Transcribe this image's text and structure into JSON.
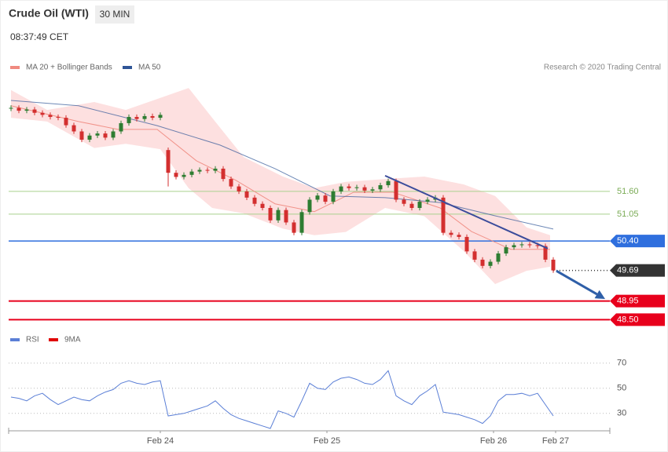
{
  "header": {
    "title": "Crude Oil (WTI)",
    "interval": "30 MIN",
    "time": "08:37:49 CET",
    "credit": "Research © 2020 Trading Central"
  },
  "chart_data": [
    {
      "type": "candlestick",
      "xlim": [
        -0.3,
        76.2
      ],
      "ylim": [
        48.26,
        54.33
      ],
      "up_color": "#2e7d32",
      "down_color": "#d32f2f",
      "open": [
        53.6,
        53.62,
        53.55,
        53.58,
        53.5,
        53.45,
        53.4,
        53.38,
        53.2,
        53.05,
        52.85,
        52.95,
        53.0,
        52.9,
        53.05,
        53.25,
        53.4,
        53.35,
        53.42,
        53.38,
        52.6,
        52.05,
        51.95,
        52.0,
        52.08,
        52.12,
        52.1,
        52.15,
        51.9,
        51.72,
        51.6,
        51.45,
        51.3,
        51.2,
        50.9,
        51.15,
        50.85,
        50.6,
        51.1,
        51.4,
        51.5,
        51.35,
        51.6,
        51.72,
        51.68,
        51.7,
        51.62,
        51.65,
        51.75,
        51.85,
        51.4,
        51.3,
        51.2,
        51.35,
        51.4,
        51.45,
        50.6,
        50.55,
        50.5,
        50.15,
        49.95,
        49.8,
        49.9,
        50.1,
        50.25,
        50.3,
        50.32,
        50.3,
        50.28,
        49.95
      ],
      "high": [
        53.68,
        53.68,
        53.64,
        53.64,
        53.56,
        53.51,
        53.46,
        53.44,
        53.26,
        53.11,
        53.01,
        53.06,
        53.06,
        53.11,
        53.31,
        53.46,
        53.46,
        53.48,
        53.48,
        53.51,
        52.66,
        52.11,
        52.06,
        52.14,
        52.18,
        52.18,
        52.21,
        52.21,
        51.96,
        51.78,
        51.66,
        51.51,
        51.36,
        51.26,
        51.21,
        51.21,
        50.91,
        51.16,
        51.46,
        51.56,
        51.56,
        51.66,
        51.78,
        51.78,
        51.76,
        51.76,
        51.71,
        51.81,
        51.91,
        51.91,
        51.46,
        51.36,
        51.41,
        51.46,
        51.51,
        51.51,
        50.66,
        50.61,
        50.56,
        50.21,
        50.01,
        49.96,
        50.16,
        50.31,
        50.36,
        50.38,
        50.38,
        50.36,
        50.34,
        50.01
      ],
      "low": [
        53.54,
        53.49,
        53.49,
        53.44,
        53.39,
        53.34,
        53.32,
        53.14,
        52.99,
        52.79,
        52.79,
        52.89,
        52.84,
        52.84,
        52.99,
        53.19,
        53.29,
        53.29,
        53.32,
        53.32,
        51.72,
        51.89,
        51.89,
        51.94,
        52.02,
        52.04,
        52.04,
        51.84,
        51.66,
        51.54,
        51.39,
        51.24,
        51.14,
        50.84,
        50.84,
        50.79,
        50.54,
        50.54,
        51.04,
        51.34,
        51.29,
        51.29,
        51.54,
        51.62,
        51.62,
        51.56,
        51.56,
        51.59,
        51.69,
        51.34,
        51.24,
        51.14,
        51.14,
        51.29,
        51.34,
        50.54,
        50.49,
        50.44,
        50.09,
        49.89,
        49.74,
        49.74,
        49.84,
        50.04,
        50.19,
        50.24,
        50.24,
        50.22,
        49.89,
        49.63
      ],
      "close": [
        53.62,
        53.55,
        53.58,
        53.5,
        53.45,
        53.4,
        53.38,
        53.2,
        53.05,
        52.85,
        52.95,
        53.0,
        52.9,
        53.05,
        53.25,
        53.4,
        53.35,
        53.42,
        53.38,
        53.45,
        52.05,
        51.95,
        52.0,
        52.08,
        52.12,
        52.1,
        52.15,
        51.9,
        51.72,
        51.6,
        51.45,
        51.3,
        51.2,
        50.9,
        51.15,
        50.85,
        50.6,
        51.1,
        51.4,
        51.5,
        51.35,
        51.6,
        51.72,
        51.68,
        51.7,
        51.62,
        51.65,
        51.75,
        51.85,
        51.4,
        51.3,
        51.2,
        51.35,
        51.4,
        51.45,
        50.6,
        50.55,
        50.5,
        50.15,
        49.95,
        49.8,
        49.9,
        50.1,
        50.25,
        50.3,
        50.32,
        50.3,
        50.28,
        49.95,
        49.69
      ],
      "bands": {
        "color": "#fde0e0",
        "x": [
          0,
          4.6,
          10.6,
          14.6,
          19,
          22.6,
          25.6,
          29.6,
          34.6,
          38.6,
          42.6,
          47.6,
          52.6,
          57.6,
          61.6,
          65.6,
          68.6
        ],
        "upper": [
          54.05,
          53.57,
          53.76,
          53.57,
          53.86,
          54.1,
          53.38,
          52.43,
          51.96,
          51.68,
          51.83,
          51.9,
          51.96,
          51.77,
          51.49,
          50.73,
          50.54
        ],
        "lower": [
          53.38,
          53.29,
          52.65,
          52.75,
          52.62,
          51.68,
          51.2,
          51.07,
          50.7,
          50.54,
          50.62,
          51.2,
          51.0,
          50.16,
          49.36,
          49.68,
          49.78
        ]
      },
      "series": [
        {
          "name": "MA 20 + Bollinger Bands",
          "color": "#f08a80",
          "x": [
            0,
            8.6,
            13.6,
            18.6,
            23.6,
            28.6,
            33.6,
            38.6,
            43.6,
            48.6,
            54.6,
            58.6,
            63.6,
            68.6
          ],
          "values": [
            53.67,
            53.29,
            53.1,
            53.1,
            52.34,
            51.87,
            51.3,
            51.11,
            51.58,
            51.58,
            51.2,
            50.63,
            50.2,
            50.2
          ]
        },
        {
          "name": "MA 50",
          "color": "#2f5597",
          "x": [
            0,
            8.6,
            18.6,
            26.6,
            33.6,
            40.6,
            47.6,
            54.6,
            61.6,
            69
          ],
          "values": [
            53.8,
            53.67,
            53.19,
            52.72,
            52.15,
            51.49,
            51.45,
            51.33,
            51.01,
            50.69
          ]
        }
      ],
      "trendline": {
        "color": "#3b4c9b",
        "x": [
          47.6,
          68.3
        ],
        "values": [
          51.98,
          50.22
        ]
      },
      "arrow": {
        "color": "#2f5fa8",
        "x": [
          69.4,
          75.6
        ],
        "values": [
          49.68,
          49.0
        ]
      },
      "levels": [
        {
          "value": 51.6,
          "label": "51.60",
          "color": "#a9d18e",
          "tag": false,
          "dotted": false
        },
        {
          "value": 51.05,
          "label": "51.05",
          "color": "#a9d18e",
          "tag": false,
          "dotted": false
        },
        {
          "value": 50.4,
          "label": "50.40",
          "color": "#2f6fde",
          "tag": true,
          "dotted": false
        },
        {
          "value": 49.69,
          "label": "49.69",
          "color": "#333333",
          "tag": true,
          "dotted": true
        },
        {
          "value": 48.95,
          "label": "48.95",
          "color": "#e8001c",
          "tag": true,
          "dotted": false
        },
        {
          "value": 48.5,
          "label": "48.50",
          "color": "#e8001c",
          "tag": true,
          "dotted": false
        }
      ]
    },
    {
      "type": "line",
      "xlim": [
        -0.3,
        76.2
      ],
      "ylim": [
        18,
        78
      ],
      "yticks": [
        30,
        50,
        70
      ],
      "xticks": [
        {
          "value": 19,
          "label": "Feb 24"
        },
        {
          "value": 40.2,
          "label": "Feb 25"
        },
        {
          "value": 61.4,
          "label": "Feb 26"
        },
        {
          "value": 69.3,
          "label": "Feb 27"
        }
      ],
      "series": [
        {
          "name": "RSI",
          "color": "#5b7fd6",
          "values": [
            43,
            42,
            40,
            44,
            46,
            41,
            37,
            40,
            43,
            41,
            40,
            44,
            47,
            49,
            54,
            56,
            54,
            53,
            55,
            56,
            28,
            29,
            30,
            32,
            34,
            36,
            40,
            34,
            29,
            26,
            24,
            22,
            20,
            18,
            32,
            30,
            27,
            40,
            54,
            50,
            49,
            55,
            58,
            59,
            57,
            54,
            53,
            57,
            64,
            44,
            40,
            37,
            44,
            48,
            53,
            31,
            30,
            29,
            27,
            25,
            22,
            28,
            40,
            45,
            45,
            46,
            44,
            46,
            37,
            28
          ]
        },
        {
          "name": "9MA",
          "color": "#e00000"
        }
      ]
    }
  ]
}
